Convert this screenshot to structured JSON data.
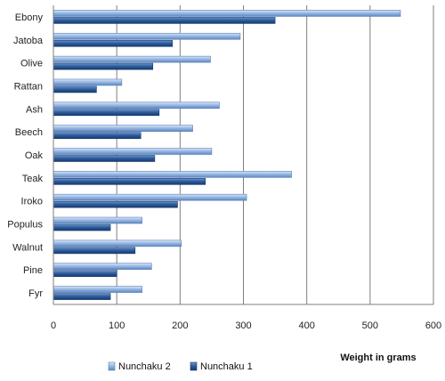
{
  "chart_data": {
    "type": "bar",
    "orientation": "horizontal",
    "categories": [
      "Ebony",
      "Jatoba",
      "Olive",
      "Rattan",
      "Ash",
      "Beech",
      "Oak",
      "Teak",
      "Iroko",
      "Populus",
      "Walnut",
      "Pine",
      "Fyr"
    ],
    "series": [
      {
        "name": "Nunchaku 2",
        "values": [
          548,
          295,
          248,
          108,
          262,
          220,
          250,
          376,
          305,
          140,
          202,
          155,
          140
        ],
        "color": "#8cb0e0"
      },
      {
        "name": "Nunchaku 1",
        "values": [
          350,
          188,
          157,
          68,
          167,
          138,
          160,
          240,
          196,
          90,
          129,
          100,
          90
        ],
        "color": "#2e5f9e"
      }
    ],
    "xlabel": "Weight in grams",
    "xlim": [
      0,
      600
    ],
    "xticks": [
      0,
      100,
      200,
      300,
      400,
      500,
      600
    ],
    "grid": true,
    "legend_position": "bottom"
  }
}
